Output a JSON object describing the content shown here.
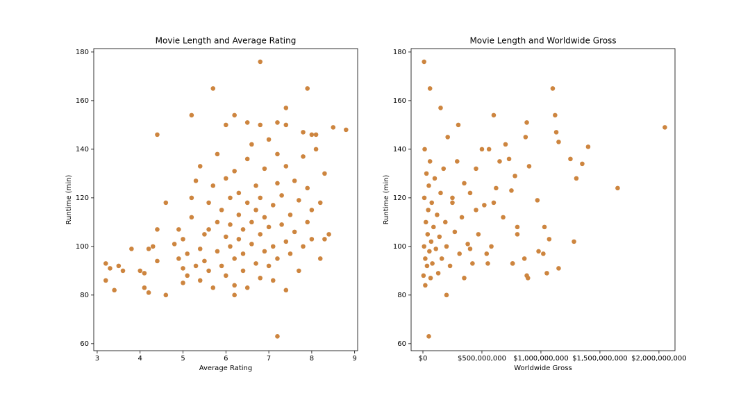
{
  "chart_data": [
    {
      "type": "scatter",
      "title": "Movie Length and Average Rating",
      "x_label": "Average Rating",
      "y_label": "Runtime (min)",
      "color": "#cd853f",
      "xlim": [
        2.92,
        9.07
      ],
      "ylim": [
        57.1,
        181.4
      ],
      "xticks": [
        3,
        4,
        5,
        6,
        7,
        8,
        9
      ],
      "yticks": [
        60,
        80,
        100,
        120,
        140,
        160,
        180
      ],
      "x": [
        6.8,
        5.7,
        7.9,
        5.2,
        6.2,
        7.4,
        7.2,
        6.5,
        6.0,
        6.8,
        7.4,
        8.5,
        8.8,
        4.4,
        7.8,
        8.0,
        7.2,
        4.6,
        6.2,
        3.2,
        3.4,
        3.2,
        3.3,
        3.5,
        3.6,
        3.8,
        4.0,
        4.1,
        4.1,
        4.2,
        4.2,
        4.3,
        4.4,
        4.4,
        4.6,
        8.2,
        8.3,
        8.4,
        8.3,
        8.2,
        8.1,
        8.1,
        4.8,
        4.9,
        4.9,
        5.0,
        5.0,
        5.0,
        5.1,
        5.1,
        5.2,
        5.2,
        5.3,
        5.3,
        5.4,
        5.4,
        5.4,
        5.5,
        5.5,
        5.6,
        5.6,
        5.6,
        5.7,
        5.7,
        5.8,
        5.8,
        5.8,
        5.9,
        5.9,
        6.0,
        6.0,
        6.0,
        6.1,
        6.1,
        6.1,
        6.2,
        6.2,
        6.2,
        6.3,
        6.3,
        6.3,
        6.4,
        6.4,
        6.4,
        6.5,
        6.5,
        6.5,
        6.6,
        6.6,
        6.6,
        6.7,
        6.7,
        6.7,
        6.8,
        6.8,
        6.8,
        6.9,
        6.9,
        6.9,
        7.0,
        7.0,
        7.0,
        7.1,
        7.1,
        7.1,
        7.2,
        7.2,
        7.2,
        7.3,
        7.3,
        7.4,
        7.4,
        7.4,
        7.5,
        7.5,
        7.6,
        7.6,
        7.7,
        7.7,
        7.8,
        7.8,
        7.9,
        7.9,
        8.0,
        8.0
      ],
      "y": [
        176,
        165,
        165,
        154,
        154,
        157,
        151,
        151,
        150,
        150,
        150,
        149,
        148,
        146,
        147,
        146,
        63,
        80,
        80,
        86,
        82,
        93,
        91,
        92,
        90,
        99,
        90,
        89,
        83,
        81,
        99,
        100,
        94,
        107,
        118,
        95,
        103,
        105,
        130,
        118,
        146,
        140,
        101,
        95,
        107,
        91,
        85,
        103,
        88,
        97,
        112,
        120,
        127,
        92,
        133,
        99,
        86,
        105,
        94,
        107,
        90,
        118,
        125,
        83,
        138,
        110,
        98,
        92,
        115,
        104,
        128,
        88,
        120,
        100,
        109,
        95,
        131,
        84,
        113,
        103,
        122,
        90,
        107,
        97,
        136,
        118,
        83,
        110,
        101,
        142,
        93,
        125,
        115,
        105,
        87,
        120,
        132,
        98,
        112,
        144,
        92,
        108,
        117,
        100,
        86,
        126,
        95,
        138,
        109,
        121,
        102,
        82,
        133,
        113,
        97,
        127,
        106,
        90,
        119,
        100,
        137,
        110,
        124,
        103,
        115
      ]
    },
    {
      "type": "scatter",
      "title": "Movie Length and Worldwide Gross",
      "x_label": "Worldwide Gross",
      "y_label": "Runtime (min)",
      "color": "#cd853f",
      "xlim": [
        -100000000,
        2136000000
      ],
      "ylim": [
        57.1,
        181.4
      ],
      "xticks": [
        {
          "value": 0,
          "label": "$0"
        },
        {
          "value": 500000000,
          "label": "$500,000,000"
        },
        {
          "value": 1000000000,
          "label": "$1,000,000,000"
        },
        {
          "value": 1500000000,
          "label": "$1,500,000,000"
        },
        {
          "value": 2000000000,
          "label": "$2,000,000,000"
        }
      ],
      "yticks": [
        60,
        80,
        100,
        120,
        140,
        160,
        180
      ],
      "x": [
        2050000000,
        1650000000,
        1400000000,
        1350000000,
        1300000000,
        1280000000,
        1250000000,
        1150000000,
        1130000000,
        1120000000,
        1100000000,
        1150000000,
        1070000000,
        1050000000,
        1030000000,
        1020000000,
        980000000,
        970000000,
        900000000,
        880000000,
        870000000,
        880000000,
        890000000,
        860000000,
        800000000,
        800000000,
        780000000,
        750000000,
        760000000,
        600000000,
        620000000,
        580000000,
        550000000,
        500000000,
        450000000,
        400000000,
        350000000,
        300000000,
        250000000,
        200000000,
        50000000,
        10000000,
        60000000,
        150000000,
        5000000,
        10000000,
        12000000,
        15000000,
        20000000,
        20000000,
        25000000,
        30000000,
        35000000,
        40000000,
        45000000,
        50000000,
        55000000,
        60000000,
        65000000,
        70000000,
        75000000,
        80000000,
        90000000,
        100000000,
        110000000,
        120000000,
        130000000,
        140000000,
        150000000,
        160000000,
        175000000,
        190000000,
        200000000,
        210000000,
        230000000,
        250000000,
        270000000,
        290000000,
        310000000,
        330000000,
        350000000,
        380000000,
        400000000,
        420000000,
        450000000,
        470000000,
        520000000,
        540000000,
        560000000,
        600000000,
        650000000,
        680000000,
        700000000,
        730000000,
        760000000
      ],
      "y": [
        149,
        124,
        141,
        134,
        128,
        102,
        136,
        143,
        147,
        154,
        165,
        91,
        103,
        89,
        108,
        97,
        98,
        119,
        133,
        151,
        145,
        88,
        87,
        95,
        108,
        105,
        129,
        123,
        93,
        154,
        124,
        100,
        93,
        140,
        115,
        99,
        87,
        150,
        120,
        80,
        63,
        176,
        165,
        157,
        88,
        100,
        120,
        140,
        84,
        95,
        110,
        130,
        92,
        105,
        115,
        125,
        98,
        135,
        87,
        102,
        118,
        93,
        108,
        128,
        99,
        113,
        89,
        104,
        122,
        95,
        132,
        110,
        100,
        145,
        92,
        118,
        106,
        135,
        97,
        112,
        126,
        101,
        122,
        93,
        132,
        105,
        117,
        97,
        140,
        118,
        135,
        112,
        142,
        136,
        93
      ]
    }
  ]
}
